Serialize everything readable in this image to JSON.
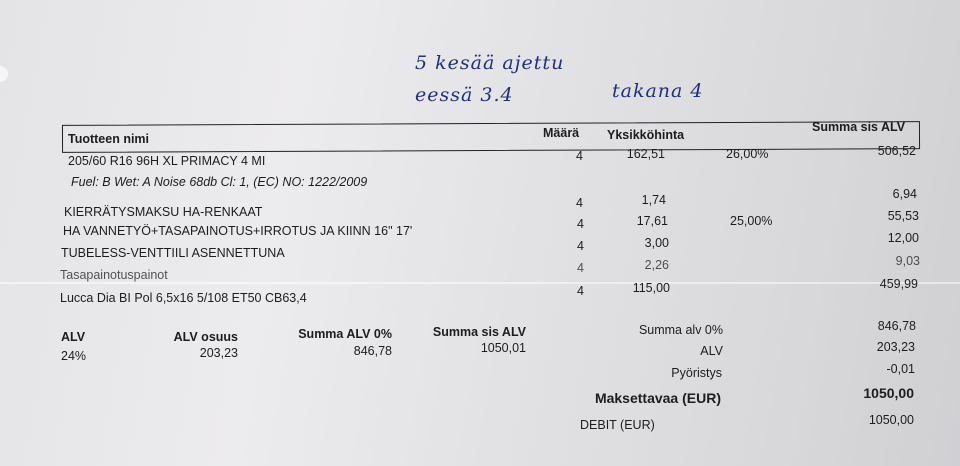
{
  "handwriting": {
    "line1": "5 kesää ajettu",
    "front_label": "eessä 3.4",
    "rear_label": "takana 4"
  },
  "table": {
    "headers": {
      "product": "Tuotteen nimi",
      "qty": "Määrä",
      "unit_price": "Yksikköhinta",
      "total": "Summa sis ALV"
    },
    "rows": [
      {
        "name": "205/60 R16 96H XL PRIMACY 4 MI",
        "qty": "4",
        "unit_price": "162,51",
        "discount": "26,00%",
        "total": "506,52"
      },
      {
        "name": "Fuel: B Wet: A Noise 68db Cl: 1, (EC) NO: 1222/2009"
      },
      {
        "name": "KIERRÄTYSMAKSU HA-RENKAAT",
        "qty": "4",
        "unit_price": "1,74",
        "total": "6,94"
      },
      {
        "name": "HA VANNETYÖ+TASAPAINOTUS+IRROTUS JA KIINN 16\" 17'",
        "qty": "4",
        "unit_price": "17,61",
        "discount": "25,00%",
        "total": "55,53"
      },
      {
        "name": "TUBELESS-VENTTIILI ASENNETTUNA",
        "qty": "4",
        "unit_price": "3,00",
        "total": "12,00"
      },
      {
        "name": "Tasapainotuspainot",
        "qty": "4",
        "unit_price": "2,26",
        "total": "9,03"
      },
      {
        "name": "Lucca Dia BI Pol 6,5x16 5/108 ET50 CB63,4",
        "qty": "4",
        "unit_price": "115,00",
        "total": "459,99"
      }
    ]
  },
  "vat_summary": {
    "headers": {
      "rate": "ALV",
      "vat_amount": "ALV osuus",
      "net": "Summa ALV 0%",
      "gross": "Summa sis ALV"
    },
    "values": {
      "rate": "24%",
      "vat_amount": "203,23",
      "net": "846,78",
      "gross": "1050,01"
    }
  },
  "totals": [
    {
      "label": "Summa alv 0%",
      "value": "846,78"
    },
    {
      "label": "ALV",
      "value": "203,23"
    },
    {
      "label": "Pyöristys",
      "value": "-0,01"
    },
    {
      "label": "Maksettavaa (EUR)",
      "value": "1050,00"
    },
    {
      "label": "DEBIT (EUR)",
      "value": "1050,00"
    }
  ]
}
